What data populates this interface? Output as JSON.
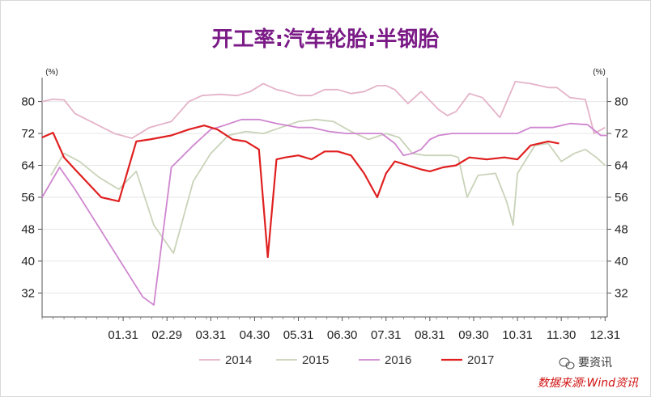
{
  "chart_data": {
    "type": "line",
    "title": "开工率:汽车轮胎:半钢胎",
    "unit": "(%)",
    "ylim": [
      26,
      86
    ],
    "yticks": [
      32,
      40,
      48,
      56,
      64,
      72,
      80
    ],
    "ytick_labels": [
      "32",
      "40",
      "48",
      "56",
      "64",
      "72",
      "80"
    ],
    "xlim": [
      -0.85,
      12.05
    ],
    "xticks": [
      1,
      2,
      3,
      4,
      5,
      6,
      7,
      8,
      9,
      10,
      11,
      12
    ],
    "xtick_labels": [
      "01.31",
      "02.29",
      "03.31",
      "04.30",
      "05.31",
      "06.30",
      "07.31",
      "08.31",
      "09.30",
      "10.31",
      "11.30",
      "12.31"
    ],
    "grid": "horizontal",
    "legend_position": "bottom",
    "series": [
      {
        "name": "2014",
        "color": "#e4b3c8",
        "x": [
          -0.85,
          -0.6,
          -0.35,
          -0.1,
          0.35,
          0.8,
          1.2,
          1.6,
          2.1,
          2.5,
          2.8,
          3.2,
          3.6,
          3.9,
          4.2,
          4.5,
          4.7,
          5.0,
          5.3,
          5.6,
          5.9,
          6.2,
          6.5,
          6.8,
          7.0,
          7.2,
          7.5,
          7.8,
          8.2,
          8.4,
          8.6,
          8.9,
          9.2,
          9.6,
          9.95,
          10.3,
          10.7,
          10.9,
          11.2,
          11.55,
          11.75,
          12.0
        ],
        "y": [
          80,
          80.6,
          80.4,
          77,
          74.5,
          72,
          70.8,
          73.5,
          75,
          80,
          81.5,
          81.8,
          81.5,
          82.5,
          84.5,
          83,
          82.5,
          81.5,
          81.5,
          83,
          83,
          82,
          82.5,
          84,
          84,
          83,
          79.5,
          82.5,
          78,
          76.5,
          77.5,
          82,
          81,
          76,
          85,
          84.5,
          83.5,
          83.5,
          81,
          80.5,
          72,
          73.5
        ]
      },
      {
        "name": "2015",
        "color": "#c9d3b9",
        "x": [
          -0.65,
          -0.35,
          0.0,
          0.45,
          0.9,
          1.3,
          1.7,
          2.15,
          2.6,
          3.0,
          3.4,
          3.8,
          4.2,
          4.6,
          5.0,
          5.4,
          5.8,
          6.2,
          6.6,
          7.0,
          7.3,
          7.6,
          7.9,
          8.2,
          8.5,
          8.65,
          8.85,
          9.1,
          9.5,
          9.75,
          9.9,
          10.0,
          10.4,
          10.7,
          11.0,
          11.3,
          11.55,
          11.8,
          12.0
        ],
        "y": [
          61.5,
          67,
          65,
          61,
          58,
          62.5,
          49,
          42,
          60,
          67,
          71.5,
          72.5,
          72,
          73.5,
          75,
          75.5,
          75,
          72.5,
          70.5,
          72,
          71,
          67,
          66.5,
          66.5,
          66.5,
          66,
          56,
          61.5,
          62,
          55,
          49,
          62,
          69,
          69.5,
          65,
          67,
          68,
          66,
          64
        ]
      },
      {
        "name": "2016",
        "color": "#cf86cf",
        "x": [
          -0.85,
          -0.45,
          -0.1,
          1.45,
          1.7,
          2.1,
          2.6,
          3.0,
          3.3,
          3.7,
          4.1,
          4.5,
          5.0,
          5.3,
          5.7,
          6.1,
          6.5,
          6.9,
          7.2,
          7.4,
          7.6,
          7.8,
          8.0,
          8.2,
          8.5,
          8.8,
          9.2,
          9.6,
          10.0,
          10.3,
          10.55,
          10.8,
          11.2,
          11.6,
          11.9,
          12.05
        ],
        "y": [
          56,
          63.5,
          58,
          31,
          29,
          63.5,
          69,
          73,
          74,
          75.5,
          75.5,
          74.5,
          73.5,
          73.5,
          72.5,
          72,
          72,
          72,
          69.5,
          66.5,
          67,
          68,
          70.5,
          71.5,
          72,
          72,
          72,
          72,
          72,
          73.5,
          73.5,
          73.5,
          74.5,
          74.2,
          71.5,
          71.5
        ]
      },
      {
        "name": "2017",
        "color": "#e02020",
        "x": [
          -0.85,
          -0.6,
          -0.35,
          -0.1,
          0.5,
          0.9,
          1.3,
          1.6,
          2.1,
          2.5,
          2.85,
          3.15,
          3.5,
          3.8,
          4.1,
          4.3,
          4.5,
          4.7,
          5.0,
          5.3,
          5.6,
          5.9,
          6.2,
          6.5,
          6.8,
          7.0,
          7.2,
          7.5,
          7.8,
          8.0,
          8.3,
          8.6,
          8.9,
          9.3,
          9.7,
          10.0,
          10.3,
          10.5,
          10.7,
          10.95
        ],
        "y": [
          71,
          72.2,
          66,
          63,
          56,
          55,
          70,
          70.5,
          71.5,
          73,
          74,
          73,
          70.5,
          70,
          68,
          41,
          65.5,
          66,
          66.5,
          65.5,
          67.5,
          67.5,
          66.5,
          62,
          56,
          62,
          65,
          64,
          63,
          62.5,
          63.5,
          64,
          66,
          65.5,
          66,
          65.5,
          69,
          69.5,
          70,
          69.5
        ]
      }
    ]
  },
  "watermark": "要资讯",
  "source_note": "数据来源:Wind资讯"
}
